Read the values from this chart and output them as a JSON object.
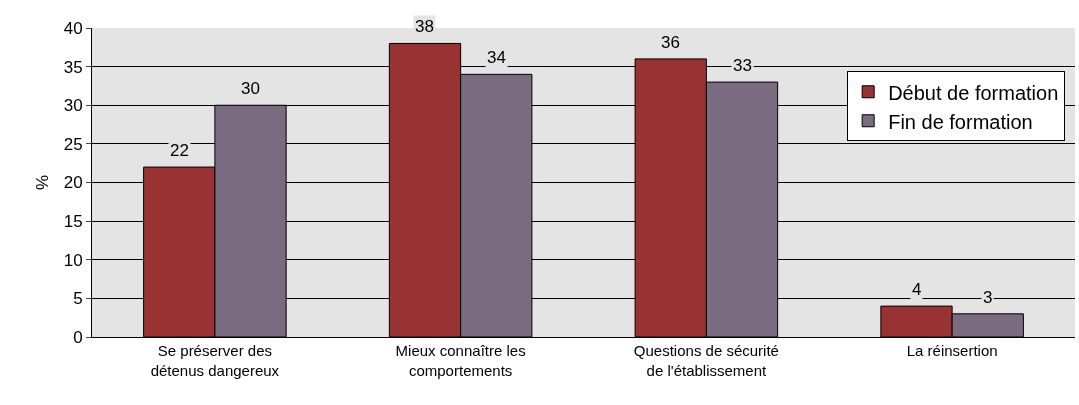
{
  "chart_data": {
    "type": "bar",
    "ylabel": "%",
    "categories": [
      "Se préserver des\ndétenus dangereux",
      "Mieux connaître les\ncomportements",
      "Questions de sécurité\nde l'établissement",
      "La réinsertion"
    ],
    "series": [
      {
        "name": "Début de formation",
        "color": "#993333",
        "values": [
          22,
          38,
          36,
          4
        ]
      },
      {
        "name": "Fin de formation",
        "color": "#7b6b80",
        "values": [
          30,
          34,
          33,
          3
        ]
      }
    ],
    "ylim": [
      0,
      40
    ],
    "yticks": [
      0,
      5,
      10,
      15,
      20,
      25,
      30,
      35,
      40
    ],
    "grid": "y",
    "legend": "top right",
    "data_labels": true
  }
}
